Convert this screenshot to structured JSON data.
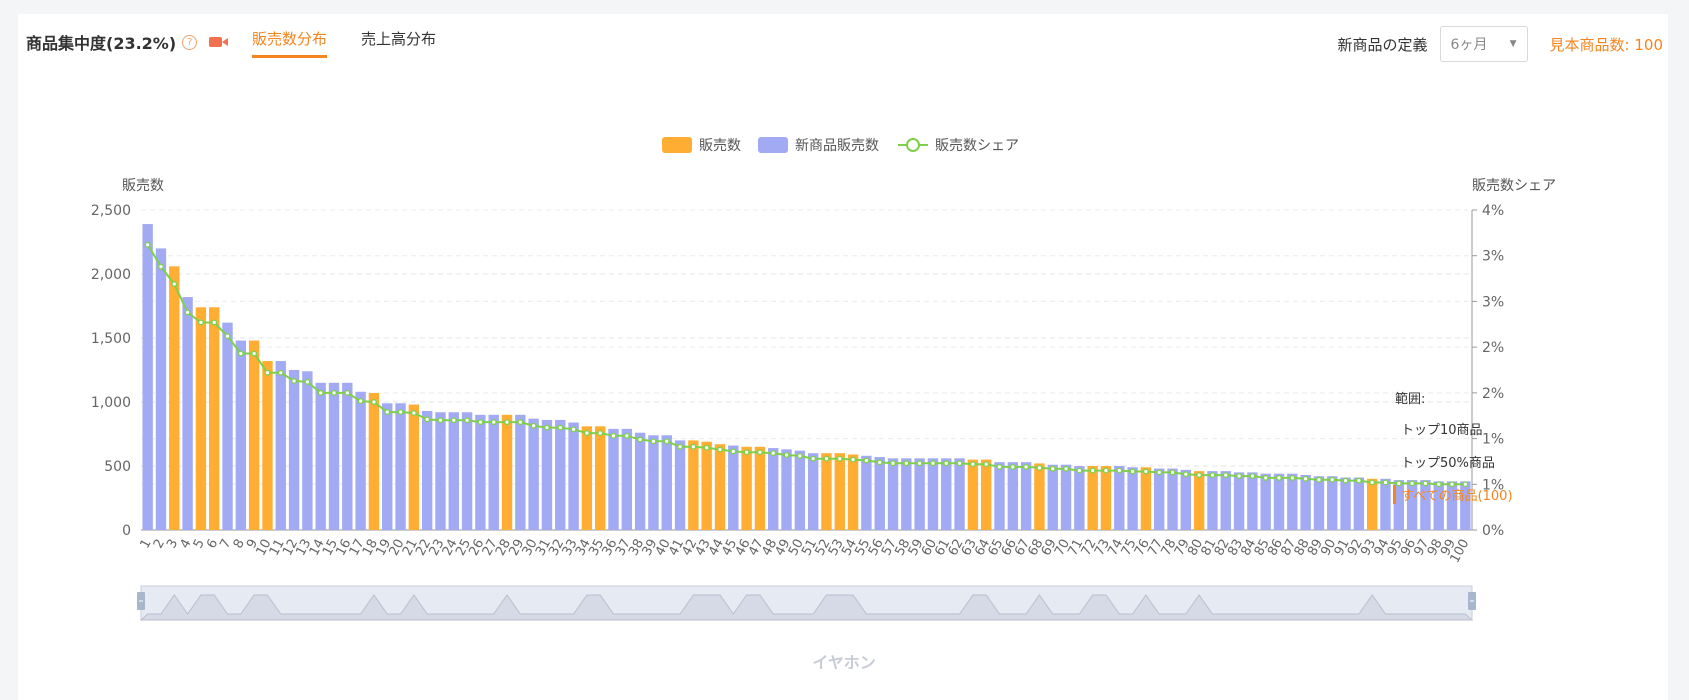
{
  "header": {
    "title": "商品集中度(23.2%)",
    "tabs": [
      {
        "label": "販売数分布",
        "active": true
      },
      {
        "label": "売上高分布",
        "active": false
      }
    ],
    "definition_label": "新商品の定義",
    "definition_value": "6ヶ月",
    "sample_count": "見本商品数: 100"
  },
  "colors": {
    "sales": "#ffad33",
    "new_sales": "#a1aaf3",
    "share": "#7ed04b",
    "accent": "#f5851f"
  },
  "chart_data": {
    "type": "bar",
    "legend": [
      "販売数",
      "新商品販売数",
      "販売数シェア"
    ],
    "ylabel_left": "販売数",
    "ylabel_right": "販売数シェア",
    "y_ticks": [
      "0",
      "500",
      "1,000",
      "1,500",
      "2,000",
      "2,500"
    ],
    "y2_ticks": [
      "0%",
      "1%",
      "1%",
      "2%",
      "2%",
      "3%",
      "3%",
      "4%"
    ],
    "ylim": [
      0,
      2500
    ],
    "y2lim": [
      0,
      3.5
    ],
    "categories": [
      "1",
      "2",
      "3",
      "4",
      "5",
      "6",
      "7",
      "8",
      "9",
      "10",
      "11",
      "12",
      "13",
      "14",
      "15",
      "16",
      "17",
      "18",
      "19",
      "20",
      "21",
      "22",
      "23",
      "24",
      "25",
      "26",
      "27",
      "28",
      "29",
      "30",
      "31",
      "32",
      "33",
      "34",
      "35",
      "36",
      "37",
      "38",
      "39",
      "40",
      "41",
      "42",
      "43",
      "44",
      "45",
      "46",
      "47",
      "48",
      "49",
      "50",
      "51",
      "52",
      "53",
      "54",
      "55",
      "56",
      "57",
      "58",
      "59",
      "60",
      "61",
      "62",
      "63",
      "64",
      "65",
      "66",
      "67",
      "68",
      "69",
      "70",
      "71",
      "72",
      "73",
      "74",
      "75",
      "76",
      "77",
      "78",
      "79",
      "80",
      "81",
      "82",
      "83",
      "84",
      "85",
      "86",
      "87",
      "88",
      "89",
      "90",
      "91",
      "92",
      "93",
      "94",
      "95",
      "96",
      "97",
      "98",
      "99",
      "100"
    ],
    "values": [
      2390,
      2200,
      2060,
      1820,
      1740,
      1740,
      1620,
      1480,
      1480,
      1320,
      1320,
      1250,
      1240,
      1150,
      1150,
      1150,
      1080,
      1070,
      990,
      990,
      980,
      930,
      920,
      920,
      920,
      900,
      900,
      900,
      900,
      870,
      860,
      860,
      840,
      810,
      810,
      790,
      790,
      760,
      740,
      740,
      700,
      700,
      690,
      670,
      660,
      650,
      650,
      640,
      630,
      620,
      600,
      600,
      600,
      590,
      580,
      570,
      560,
      560,
      560,
      560,
      560,
      560,
      550,
      550,
      530,
      530,
      530,
      520,
      510,
      510,
      500,
      500,
      500,
      500,
      490,
      490,
      480,
      480,
      470,
      460,
      460,
      460,
      450,
      450,
      440,
      440,
      440,
      430,
      420,
      420,
      410,
      410,
      400,
      400,
      390,
      390,
      390,
      380,
      380,
      380
    ],
    "series_kind": [
      "new",
      "new",
      "sales",
      "new",
      "sales",
      "sales",
      "new",
      "new",
      "sales",
      "sales",
      "new",
      "new",
      "new",
      "new",
      "new",
      "new",
      "new",
      "sales",
      "new",
      "new",
      "sales",
      "new",
      "new",
      "new",
      "new",
      "new",
      "new",
      "sales",
      "new",
      "new",
      "new",
      "new",
      "new",
      "sales",
      "sales",
      "new",
      "new",
      "new",
      "new",
      "new",
      "new",
      "sales",
      "sales",
      "sales",
      "new",
      "sales",
      "sales",
      "new",
      "new",
      "new",
      "new",
      "sales",
      "sales",
      "sales",
      "new",
      "new",
      "new",
      "new",
      "new",
      "new",
      "new",
      "new",
      "sales",
      "sales",
      "new",
      "new",
      "new",
      "sales",
      "new",
      "new",
      "new",
      "sales",
      "sales",
      "new",
      "new",
      "sales",
      "new",
      "new",
      "new",
      "sales",
      "new",
      "new",
      "new",
      "new",
      "new",
      "new",
      "new",
      "new",
      "new",
      "new",
      "new",
      "new",
      "sales",
      "new",
      "new",
      "new",
      "new",
      "new",
      "new",
      "new"
    ],
    "share": [
      3.12,
      2.88,
      2.69,
      2.38,
      2.27,
      2.27,
      2.12,
      1.93,
      1.93,
      1.72,
      1.72,
      1.63,
      1.62,
      1.5,
      1.5,
      1.5,
      1.41,
      1.4,
      1.29,
      1.29,
      1.28,
      1.21,
      1.2,
      1.2,
      1.2,
      1.18,
      1.18,
      1.18,
      1.18,
      1.14,
      1.12,
      1.12,
      1.1,
      1.06,
      1.06,
      1.03,
      1.03,
      0.99,
      0.97,
      0.97,
      0.91,
      0.91,
      0.9,
      0.88,
      0.86,
      0.85,
      0.85,
      0.84,
      0.82,
      0.81,
      0.78,
      0.78,
      0.78,
      0.77,
      0.76,
      0.74,
      0.73,
      0.73,
      0.73,
      0.73,
      0.73,
      0.73,
      0.72,
      0.72,
      0.69,
      0.69,
      0.69,
      0.68,
      0.67,
      0.67,
      0.65,
      0.65,
      0.65,
      0.65,
      0.64,
      0.64,
      0.63,
      0.63,
      0.61,
      0.6,
      0.6,
      0.6,
      0.59,
      0.59,
      0.57,
      0.57,
      0.57,
      0.56,
      0.55,
      0.55,
      0.54,
      0.54,
      0.52,
      0.52,
      0.51,
      0.51,
      0.51,
      0.5,
      0.5,
      0.5
    ],
    "grid": true
  },
  "range": {
    "title": "範囲:",
    "items": [
      {
        "label": "トップ10商品",
        "active": false
      },
      {
        "label": "トップ50%商品",
        "active": false
      },
      {
        "label": "すべての商品(100)",
        "active": true
      }
    ]
  },
  "footer_label": "イヤホン"
}
